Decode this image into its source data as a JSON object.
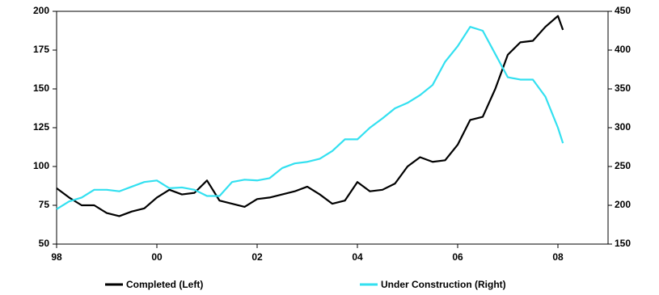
{
  "chart_data": {
    "type": "line",
    "x": [
      1998.0,
      1998.25,
      1998.5,
      1998.75,
      1999.0,
      1999.25,
      1999.5,
      1999.75,
      2000.0,
      2000.25,
      2000.5,
      2000.75,
      2001.0,
      2001.25,
      2001.5,
      2001.75,
      2002.0,
      2002.25,
      2002.5,
      2002.75,
      2003.0,
      2003.25,
      2003.5,
      2003.75,
      2004.0,
      2004.25,
      2004.5,
      2004.75,
      2005.0,
      2005.25,
      2005.5,
      2005.75,
      2006.0,
      2006.25,
      2006.5,
      2006.75,
      2007.0,
      2007.25,
      2007.5,
      2007.75,
      2008.0,
      2008.1
    ],
    "series": [
      {
        "name": "Completed (Left)",
        "color": "#000000",
        "values": [
          86,
          80,
          75,
          75,
          70,
          68,
          71,
          73,
          80,
          85,
          82,
          83,
          91,
          78,
          76,
          74,
          79,
          80,
          82,
          84,
          87,
          82,
          76,
          78,
          90,
          84,
          85,
          89,
          100,
          106,
          103,
          104,
          114,
          130,
          132,
          150,
          172,
          180,
          181,
          190,
          197,
          188
        ]
      },
      {
        "name": "Under Construction (Right)",
        "color": "#33e0f0",
        "axis": "y2",
        "values": [
          195,
          205,
          210,
          220,
          220,
          218,
          224,
          230,
          232,
          222,
          223,
          220,
          212,
          212,
          230,
          233,
          232,
          235,
          248,
          254,
          256,
          260,
          270,
          285,
          285,
          300,
          312,
          325,
          332,
          342,
          355,
          385,
          405,
          430,
          425,
          395,
          365,
          362,
          362,
          340,
          300,
          280
        ]
      }
    ],
    "xlim": [
      1998,
      2009
    ],
    "xticks": [
      {
        "value": 1998,
        "label": "98"
      },
      {
        "value": 2000,
        "label": "00"
      },
      {
        "value": 2002,
        "label": "02"
      },
      {
        "value": 2004,
        "label": "04"
      },
      {
        "value": 2006,
        "label": "06"
      },
      {
        "value": 2008,
        "label": "08"
      }
    ],
    "ylim": [
      50,
      200
    ],
    "yticks": [
      50,
      75,
      100,
      125,
      150,
      175,
      200
    ],
    "y2lim": [
      150,
      450
    ],
    "y2ticks": [
      150,
      200,
      250,
      300,
      350,
      400,
      450
    ]
  }
}
